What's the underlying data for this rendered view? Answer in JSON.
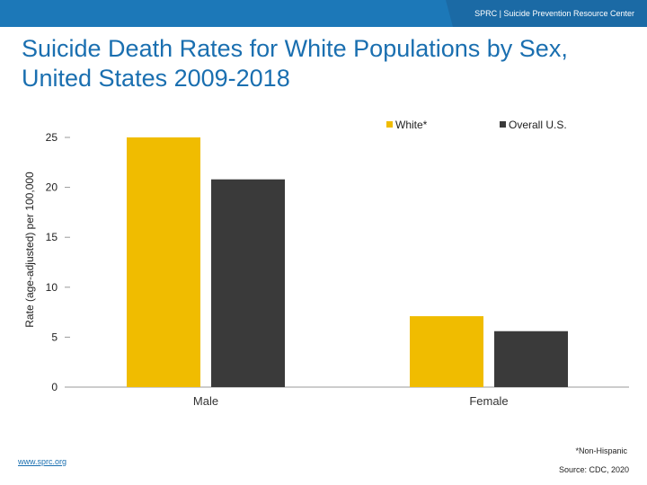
{
  "header": {
    "text": "SPRC | Suicide Prevention Resource Center"
  },
  "title": "Suicide Death Rates for White Populations by Sex, United States 2009-2018",
  "colors": {
    "white": "#f0bc00",
    "overall": "#3a3a3a",
    "topbar": "#1c78b8"
  },
  "chart_data": {
    "type": "bar",
    "title": "Suicide Death Rates for White Populations by Sex, United States 2009-2018",
    "categories": [
      "Male",
      "Female"
    ],
    "series": [
      {
        "name": "White*",
        "values": [
          25.0,
          7.1
        ]
      },
      {
        "name": "Overall U.S.",
        "values": [
          20.8,
          5.6
        ]
      }
    ],
    "xlabel": "",
    "ylabel": "Rate (age-adjusted) per 100,000",
    "ylim": [
      0,
      25
    ],
    "yticks": [
      0,
      5,
      10,
      15,
      20,
      25
    ],
    "grid": false,
    "legend": "top-right"
  },
  "footnote": "*Non-Hispanic",
  "source": "Source: CDC, 2020",
  "link": "www.sprc.org"
}
